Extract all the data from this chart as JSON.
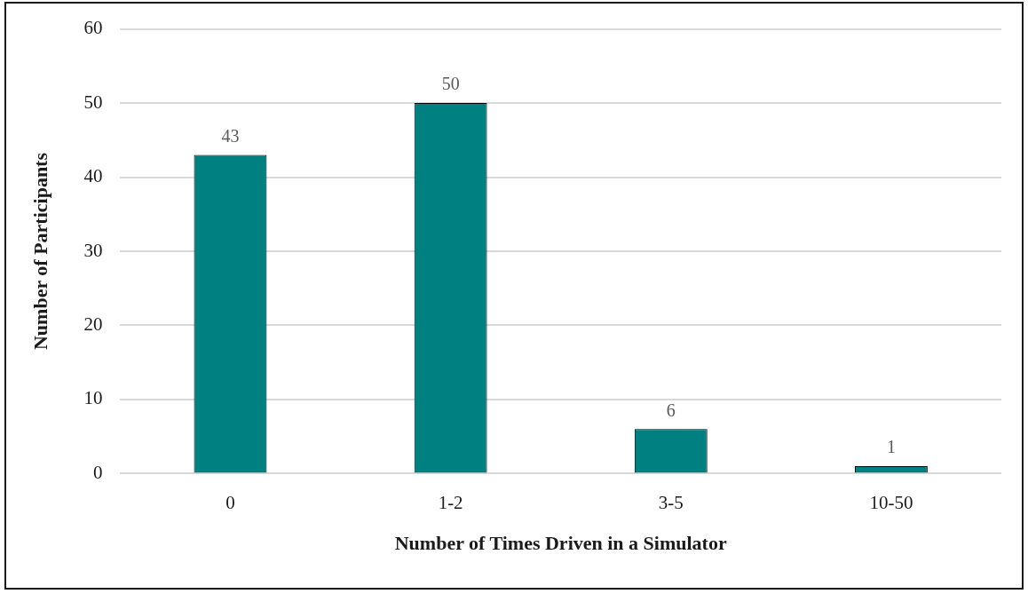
{
  "chart_data": {
    "type": "bar",
    "xlabel": "Number of Times Driven in a Simulator",
    "ylabel": "Number of Participants",
    "categories": [
      "0",
      "1-2",
      "3-5",
      "10-50"
    ],
    "values": [
      43,
      50,
      6,
      1
    ],
    "color": "#008080",
    "ylim": [
      0,
      60
    ],
    "yticks": [
      0,
      10,
      20,
      30,
      40,
      50,
      60
    ],
    "grid": "y",
    "data_labels": true
  }
}
